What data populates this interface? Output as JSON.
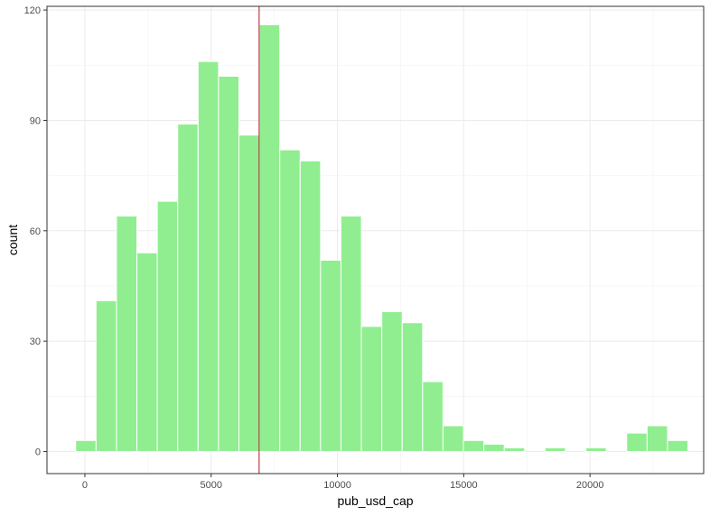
{
  "chart_data": {
    "type": "bar",
    "variant": "histogram",
    "xlabel": "pub_usd_cap",
    "ylabel": "count",
    "xlim": [
      -1500,
      24500
    ],
    "ylim": [
      -6,
      121
    ],
    "grid": true,
    "legend": "none",
    "x_ticks": [
      0,
      5000,
      10000,
      15000,
      20000
    ],
    "x_tick_labels": [
      "0",
      "5000",
      "10000",
      "15000",
      "20000"
    ],
    "y_ticks": [
      0,
      30,
      60,
      90,
      120
    ],
    "y_tick_labels": [
      "0",
      "30",
      "60",
      "90",
      "120"
    ],
    "bin_width": 808,
    "bin_centers": [
      40,
      848,
      1656,
      2464,
      3272,
      4080,
      4888,
      5696,
      6504,
      7312,
      8120,
      8928,
      9736,
      10544,
      11352,
      12160,
      12968,
      13776,
      14584,
      15392,
      16200,
      17008,
      17816,
      18624,
      19432,
      20240,
      21048,
      21856,
      22664,
      23472
    ],
    "values": [
      3,
      41,
      64,
      54,
      68,
      89,
      106,
      102,
      86,
      116,
      82,
      79,
      52,
      64,
      34,
      38,
      35,
      19,
      7,
      3,
      2,
      1,
      0,
      1,
      0,
      1,
      0,
      5,
      7,
      3
    ],
    "vline": {
      "x": 6900,
      "color": "#b2182b"
    },
    "colors": {
      "fill": "#90ee90",
      "bar_outline": "#ffffff",
      "panel_border": "#333333",
      "grid_major": "#ebebeb",
      "grid_minor": "#f2f2f2"
    }
  }
}
